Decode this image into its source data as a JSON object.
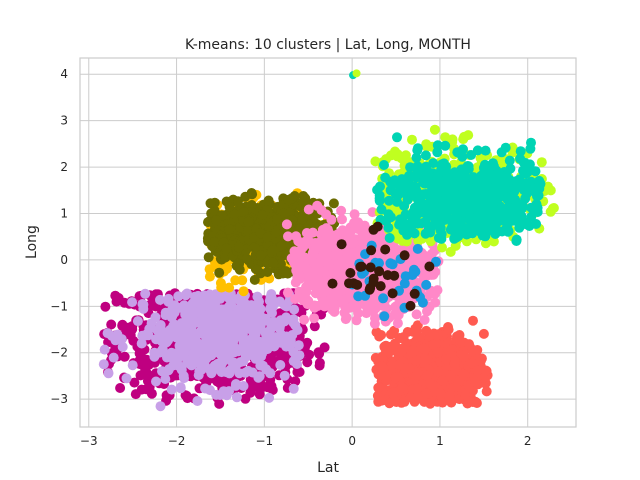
{
  "chart_data": {
    "type": "scatter",
    "title": "K-means: 10 clusters | Lat, Long, MONTH",
    "xlabel": "Lat",
    "ylabel": "Long",
    "xlim": [
      -3.1,
      2.55
    ],
    "ylim": [
      -3.6,
      4.35
    ],
    "xticks": [
      -3,
      -2,
      -1,
      0,
      1,
      2
    ],
    "yticks": [
      -3,
      -2,
      -1,
      0,
      1,
      2,
      3,
      4
    ],
    "xtick_labels": [
      "−3",
      "−2",
      "−1",
      "0",
      "1",
      "2"
    ],
    "ytick_labels": [
      "−3",
      "−2",
      "−1",
      "0",
      "1",
      "2",
      "3",
      "4"
    ],
    "grid": true,
    "legend": "none",
    "clusters": [
      {
        "color": "#bf0080",
        "cx": -1.55,
        "cy": -1.65,
        "sx": 0.55,
        "sy": 0.6,
        "n": 900,
        "extent": [
          -2.85,
          -0.3,
          -3.15,
          -0.7
        ]
      },
      {
        "color": "#c8a0e8",
        "cx": -1.5,
        "cy": -1.6,
        "sx": 0.5,
        "sy": 0.55,
        "n": 500,
        "extent": [
          -2.85,
          -0.6,
          -3.2,
          -0.7
        ]
      },
      {
        "color": "#ff5a50",
        "cx": 0.9,
        "cy": -2.4,
        "sx": 0.3,
        "sy": 0.4,
        "n": 900,
        "extent": [
          0.25,
          1.55,
          -3.1,
          -1.0
        ]
      },
      {
        "color": "#ffc000",
        "cx": -0.95,
        "cy": 0.35,
        "sx": 0.4,
        "sy": 0.4,
        "n": 350,
        "extent": [
          -1.65,
          -0.2,
          -0.7,
          1.45
        ]
      },
      {
        "color": "#6b6b00",
        "cx": -0.95,
        "cy": 0.55,
        "sx": 0.38,
        "sy": 0.35,
        "n": 700,
        "extent": [
          -1.65,
          -0.15,
          -0.6,
          1.45
        ]
      },
      {
        "color": "#ff88c8",
        "cx": 0.1,
        "cy": -0.2,
        "sx": 0.4,
        "sy": 0.45,
        "n": 1000,
        "extent": [
          -0.75,
          1.0,
          -1.4,
          1.35
        ]
      },
      {
        "color": "#c0ff20",
        "cx": 1.1,
        "cy": 1.4,
        "sx": 0.55,
        "sy": 0.5,
        "n": 450,
        "extent": [
          0.25,
          2.3,
          0.1,
          2.9
        ]
      },
      {
        "color": "#00d4b4",
        "cx": 1.3,
        "cy": 1.3,
        "sx": 0.5,
        "sy": 0.45,
        "n": 600,
        "extent": [
          0.25,
          2.15,
          0.4,
          2.8
        ]
      },
      {
        "color": "#1a9be0",
        "cx": 0.35,
        "cy": -0.4,
        "sx": 0.3,
        "sy": 0.4,
        "n": 30,
        "extent": [
          -0.2,
          1.0,
          -1.65,
          1.5
        ]
      },
      {
        "color": "#3a1a0a",
        "cx": 0.2,
        "cy": -0.3,
        "sx": 0.4,
        "sy": 0.45,
        "n": 26,
        "extent": [
          -0.45,
          1.2,
          -1.2,
          1.5
        ]
      }
    ],
    "outliers": [
      {
        "color": "#00d4b4",
        "x": 0.01,
        "y": 3.98
      },
      {
        "color": "#c0ff20",
        "x": 0.05,
        "y": 4.02
      }
    ]
  }
}
